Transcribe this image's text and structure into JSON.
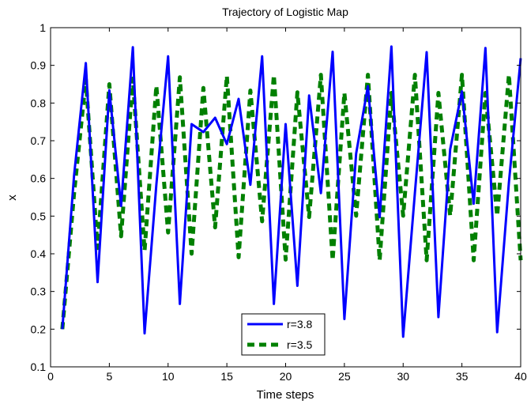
{
  "chart_data": {
    "type": "line",
    "title": "Trajectory of Logistic Map",
    "xlabel": "Time steps",
    "ylabel": "x",
    "xlim": [
      0,
      40
    ],
    "ylim": [
      0.1,
      1
    ],
    "xticks": [
      0,
      5,
      10,
      15,
      20,
      25,
      30,
      35,
      40
    ],
    "yticks": [
      0.1,
      0.2,
      0.3,
      0.4,
      0.5,
      0.6,
      0.7,
      0.8,
      0.9,
      1
    ],
    "ytick_labels": [
      "0.1",
      "0.2",
      "0.3",
      "0.4",
      "0.5",
      "0.6",
      "0.7",
      "0.8",
      "0.9",
      "1"
    ],
    "grid": false,
    "legend_position": "bottom-center",
    "x": [
      1,
      2,
      3,
      4,
      5,
      6,
      7,
      8,
      9,
      10,
      11,
      12,
      13,
      14,
      15,
      16,
      17,
      18,
      19,
      20,
      21,
      22,
      23,
      24,
      25,
      26,
      27,
      28,
      29,
      30,
      31,
      32,
      33,
      34,
      35,
      36,
      37,
      38,
      39,
      40
    ],
    "series": [
      {
        "name": "r=3.8",
        "color": "#0000ff",
        "style": "solid",
        "values": [
          0.2,
          0.608,
          0.906,
          0.325,
          0.834,
          0.527,
          0.948,
          0.189,
          0.583,
          0.924,
          0.267,
          0.744,
          0.723,
          0.761,
          0.691,
          0.811,
          0.583,
          0.924,
          0.267,
          0.744,
          0.315,
          0.82,
          0.561,
          0.936,
          0.227,
          0.666,
          0.845,
          0.497,
          0.95,
          0.18,
          0.562,
          0.935,
          0.232,
          0.677,
          0.831,
          0.533,
          0.946,
          0.192,
          0.59,
          0.919
        ]
      },
      {
        "name": "r=3.5",
        "color": "#008000",
        "style": "dashed",
        "values": [
          0.2,
          0.56,
          0.8624,
          0.4153,
          0.8499,
          0.4465,
          0.865,
          0.4088,
          0.8458,
          0.4565,
          0.8683,
          0.4003,
          0.8401,
          0.4701,
          0.8719,
          0.3909,
          0.8333,
          0.4862,
          0.8743,
          0.3846,
          0.8284,
          0.4975,
          0.875,
          0.3828,
          0.8269,
          0.501,
          0.875,
          0.3828,
          0.8269,
          0.501,
          0.875,
          0.3828,
          0.8269,
          0.501,
          0.875,
          0.3828,
          0.8269,
          0.501,
          0.875,
          0.3828
        ]
      }
    ]
  }
}
